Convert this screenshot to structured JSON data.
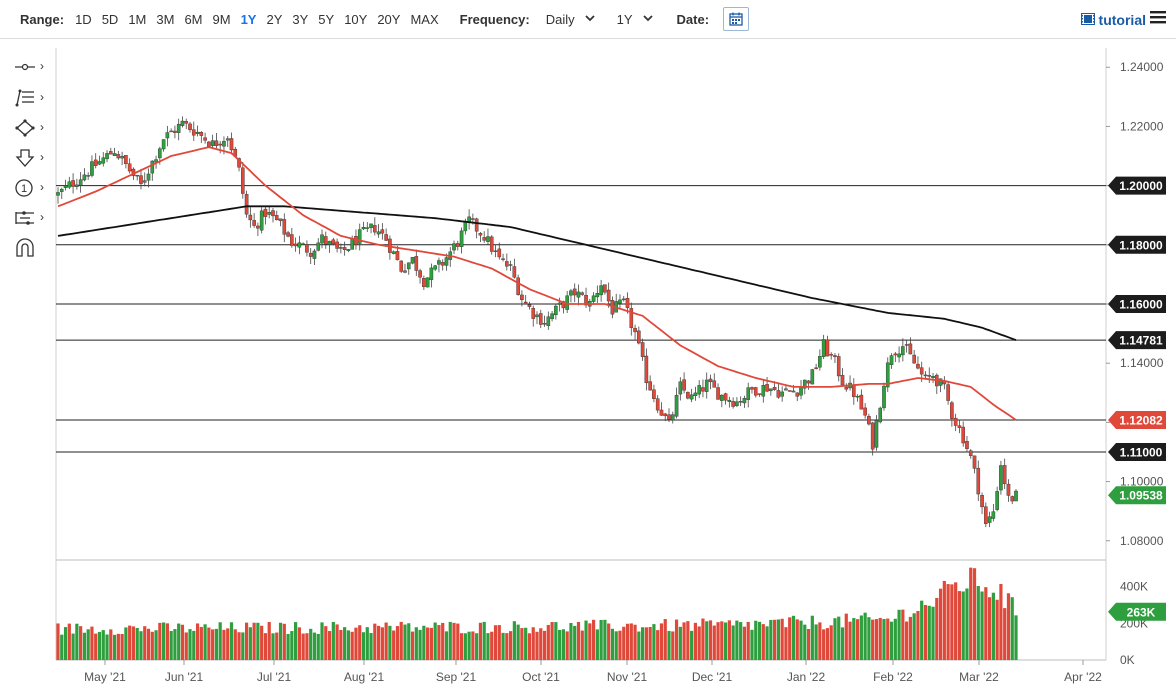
{
  "toolbar": {
    "range_label": "Range:",
    "ranges": [
      "1D",
      "5D",
      "1M",
      "3M",
      "6M",
      "9M",
      "1Y",
      "2Y",
      "3Y",
      "5Y",
      "10Y",
      "20Y",
      "MAX"
    ],
    "active_range": "1Y",
    "frequency_label": "Frequency:",
    "frequency_value": "Daily",
    "period_value": "1Y",
    "date_label": "Date:",
    "tutorial_label": "tutorial"
  },
  "icons": {
    "tools": [
      "crosshair-tool-icon",
      "fib-lines-icon",
      "shapes-icon",
      "arrow-down-icon",
      "number-marker-icon",
      "measure-tool-icon",
      "magnet-icon"
    ],
    "calendar": "calendar-icon",
    "menu": "hamburger-menu-icon"
  },
  "colors": {
    "up": "#2e9e3e",
    "down": "#e0493a",
    "ma_fast": "#e0493a",
    "ma_slow": "#111111",
    "accent": "#1a73e8"
  },
  "chart_data": {
    "type": "candlestick",
    "instrument_note": "",
    "x_ticks": [
      "May '21",
      "Jun '21",
      "Jul '21",
      "Aug '21",
      "Sep '21",
      "Oct '21",
      "Nov '21",
      "Dec '21",
      "Jan '22",
      "Feb '22",
      "Mar '22",
      "Apr '22"
    ],
    "y_ticks": [
      "1.24000",
      "1.22000",
      "1.20000",
      "1.18000",
      "1.16000",
      "1.14000",
      "1.12000",
      "1.10000",
      "1.08000"
    ],
    "ylim": [
      1.0735,
      1.2465
    ],
    "horizontal_levels": [
      1.2,
      1.18,
      1.16,
      1.1478,
      1.12082,
      1.11
    ],
    "price_labels": [
      {
        "text": "1.20000",
        "value": 1.2,
        "style": "dark"
      },
      {
        "text": "1.18000",
        "value": 1.18,
        "style": "dark"
      },
      {
        "text": "1.16000",
        "value": 1.16,
        "style": "dark"
      },
      {
        "text": "1.14781",
        "value": 1.14781,
        "style": "dark"
      },
      {
        "text": "1.12082",
        "value": 1.12082,
        "style": "red"
      },
      {
        "text": "1.11000",
        "value": 1.11,
        "style": "dark"
      },
      {
        "text": "1.09538",
        "value": 1.09538,
        "style": "green"
      }
    ],
    "last_close": 1.09538,
    "ma_fast_value": 1.12082,
    "ma_slow_value": 1.14781,
    "close_path": [
      [
        0,
        1.197
      ],
      [
        8,
        1.205
      ],
      [
        15,
        1.212
      ],
      [
        22,
        1.2
      ],
      [
        28,
        1.216
      ],
      [
        33,
        1.221
      ],
      [
        37,
        1.218
      ],
      [
        41,
        1.214
      ],
      [
        45,
        1.217
      ],
      [
        48,
        1.205
      ],
      [
        50,
        1.19
      ],
      [
        52,
        1.186
      ],
      [
        55,
        1.191
      ],
      [
        58,
        1.188
      ],
      [
        62,
        1.181
      ],
      [
        67,
        1.178
      ],
      [
        70,
        1.182
      ],
      [
        75,
        1.177
      ],
      [
        80,
        1.183
      ],
      [
        84,
        1.186
      ],
      [
        87,
        1.182
      ],
      [
        91,
        1.172
      ],
      [
        94,
        1.175
      ],
      [
        97,
        1.168
      ],
      [
        102,
        1.174
      ],
      [
        106,
        1.181
      ],
      [
        109,
        1.188
      ],
      [
        113,
        1.183
      ],
      [
        117,
        1.175
      ],
      [
        120,
        1.172
      ],
      [
        123,
        1.162
      ],
      [
        126,
        1.157
      ],
      [
        129,
        1.154
      ],
      [
        133,
        1.159
      ],
      [
        137,
        1.164
      ],
      [
        141,
        1.16
      ],
      [
        144,
        1.167
      ],
      [
        147,
        1.158
      ],
      [
        150,
        1.16
      ],
      [
        153,
        1.15
      ],
      [
        156,
        1.135
      ],
      [
        159,
        1.126
      ],
      [
        162,
        1.119
      ],
      [
        165,
        1.132
      ],
      [
        168,
        1.128
      ],
      [
        172,
        1.133
      ],
      [
        176,
        1.129
      ],
      [
        180,
        1.127
      ],
      [
        184,
        1.131
      ],
      [
        188,
        1.132
      ],
      [
        192,
        1.13
      ],
      [
        196,
        1.131
      ],
      [
        200,
        1.136
      ],
      [
        203,
        1.146
      ],
      [
        206,
        1.14
      ],
      [
        208,
        1.134
      ],
      [
        211,
        1.13
      ],
      [
        214,
        1.122
      ],
      [
        216,
        1.113
      ],
      [
        219,
        1.134
      ],
      [
        221,
        1.144
      ],
      [
        224,
        1.146
      ],
      [
        227,
        1.14
      ],
      [
        230,
        1.134
      ],
      [
        232,
        1.136
      ],
      [
        235,
        1.131
      ],
      [
        237,
        1.123
      ],
      [
        240,
        1.115
      ],
      [
        242,
        1.108
      ],
      [
        244,
        1.098
      ],
      [
        246,
        1.085
      ],
      [
        248,
        1.09
      ],
      [
        250,
        1.106
      ],
      [
        252,
        1.094
      ],
      [
        254,
        1.095
      ]
    ],
    "ma_fast_path": [
      [
        0,
        1.193
      ],
      [
        10,
        1.198
      ],
      [
        20,
        1.204
      ],
      [
        30,
        1.21
      ],
      [
        40,
        1.213
      ],
      [
        46,
        1.211
      ],
      [
        55,
        1.2
      ],
      [
        65,
        1.19
      ],
      [
        75,
        1.183
      ],
      [
        85,
        1.18
      ],
      [
        95,
        1.178
      ],
      [
        105,
        1.176
      ],
      [
        115,
        1.172
      ],
      [
        125,
        1.165
      ],
      [
        135,
        1.16
      ],
      [
        145,
        1.16
      ],
      [
        155,
        1.156
      ],
      [
        165,
        1.146
      ],
      [
        175,
        1.139
      ],
      [
        185,
        1.135
      ],
      [
        195,
        1.132
      ],
      [
        205,
        1.132
      ],
      [
        215,
        1.133
      ],
      [
        220,
        1.133
      ],
      [
        228,
        1.135
      ],
      [
        235,
        1.134
      ],
      [
        242,
        1.132
      ],
      [
        248,
        1.126
      ],
      [
        254,
        1.12082
      ]
    ],
    "ma_slow_path": [
      [
        0,
        1.183
      ],
      [
        20,
        1.187
      ],
      [
        40,
        1.191
      ],
      [
        50,
        1.193
      ],
      [
        60,
        1.193
      ],
      [
        80,
        1.191
      ],
      [
        100,
        1.189
      ],
      [
        120,
        1.186
      ],
      [
        140,
        1.18
      ],
      [
        160,
        1.174
      ],
      [
        180,
        1.168
      ],
      [
        200,
        1.162
      ],
      [
        220,
        1.157
      ],
      [
        235,
        1.155
      ],
      [
        245,
        1.152
      ],
      [
        254,
        1.14781
      ]
    ],
    "volume": {
      "y_ticks": [
        "400K",
        "200K",
        "0K"
      ],
      "ylim": [
        0,
        480000
      ],
      "last_value_label": "263K",
      "last_value": 263000,
      "profile": [
        [
          0,
          170000
        ],
        [
          60,
          175000
        ],
        [
          120,
          180000
        ],
        [
          180,
          190000
        ],
        [
          220,
          220000
        ],
        [
          232,
          320000
        ],
        [
          240,
          430000
        ],
        [
          245,
          420000
        ],
        [
          250,
          360000
        ],
        [
          254,
          263000
        ]
      ]
    }
  }
}
